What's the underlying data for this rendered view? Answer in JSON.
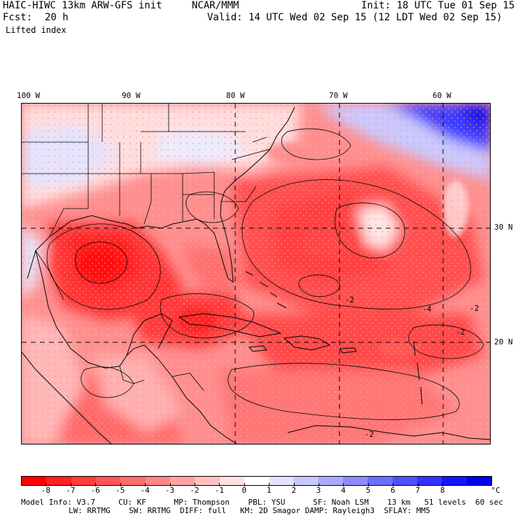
{
  "header": {
    "model": "HAIC-HIWC 13km ARW-GFS init",
    "org": "NCAR/MMM",
    "forecast_label": "Fcst:",
    "forecast_value": "20 h",
    "field": "Lifted index",
    "init": "Init: 18 UTC Tue 01 Sep 15",
    "valid": "Valid: 14 UTC Wed 02 Sep 15 (12 LDT Wed 02 Sep 15)"
  },
  "map": {
    "longitude_labels": [
      "100 W",
      "90 W",
      "80 W",
      "70 W",
      "60 W"
    ],
    "latitude_labels": [
      "30 N",
      "20 N"
    ],
    "contour_labels": [
      "-2",
      "-2",
      "-4",
      "-2",
      "-2"
    ]
  },
  "colorbar": {
    "unit": "°C",
    "ticks": [
      "-8",
      "-7",
      "-6",
      "-5",
      "-4",
      "-3",
      "-2",
      "-1",
      "0",
      "1",
      "2",
      "3",
      "4",
      "5",
      "6",
      "7",
      "8"
    ],
    "colors": [
      "#ff0000",
      "#ff2020",
      "#ff3d3d",
      "#ff5555",
      "#ff6d6d",
      "#ff8787",
      "#ffa3a3",
      "#ffc2c2",
      "#ffe2e2",
      "#ffffff",
      "#e4e4ff",
      "#c8c8ff",
      "#aaaaff",
      "#8c8cff",
      "#6e6eff",
      "#5050ff",
      "#3232ff",
      "#1414ff",
      "#0000ee"
    ]
  },
  "model_info": {
    "line1": "Model Info: V3.7     CU: KF      MP: Thompson    PBL: YSU      SF: Noah LSM    13 km   51 levels  60 sec",
    "line2": "LW: RRTMG    SW: RRTMG  DIFF: full   KM: 2D Smagor DAMP: Rayleigh3  SFLAY: MM5"
  }
}
